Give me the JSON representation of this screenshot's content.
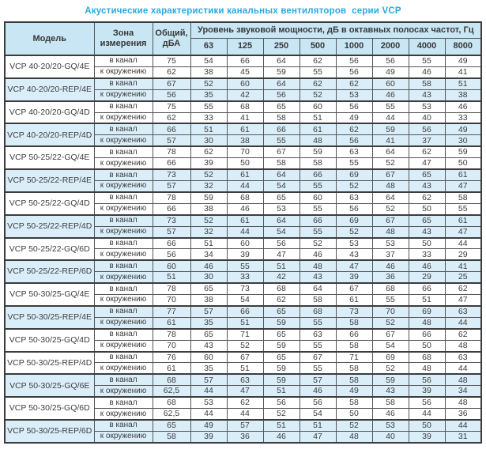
{
  "title": "Акустические характеристики канальных вентиляторов  серии VCP",
  "colors": {
    "title_text": "#29a9e1",
    "header_bg": "#c9e6f4",
    "shaded_row_bg": "#daeef9",
    "border": "#3c3c3c"
  },
  "table": {
    "header": {
      "model": "Модель",
      "zone": "Зона измерения",
      "total": "Общий, дБА",
      "spl": "Уровень звуковой мощности, дБ в октавных полосах частот, Гц",
      "freqs": [
        "63",
        "125",
        "250",
        "500",
        "1000",
        "2000",
        "4000",
        "8000"
      ]
    },
    "zone_labels": [
      "в канал",
      "к окружению"
    ],
    "models": [
      {
        "name": "VCP 40-20/20-GQ/4E",
        "shaded": false,
        "rows": [
          {
            "zone": "в канал",
            "total": "75",
            "values": [
              54,
              66,
              64,
              62,
              56,
              56,
              55,
              49
            ]
          },
          {
            "zone": "к окружению",
            "total": "62",
            "values": [
              38,
              45,
              59,
              55,
              56,
              49,
              46,
              41
            ]
          }
        ]
      },
      {
        "name": "VCP 40-20/20-REP/4E",
        "shaded": true,
        "rows": [
          {
            "zone": "в канал",
            "total": "67",
            "values": [
              52,
              60,
              64,
              62,
              62,
              60,
              58,
              51
            ]
          },
          {
            "zone": "к окружению",
            "total": "56",
            "values": [
              35,
              42,
              56,
              52,
              53,
              46,
              43,
              38
            ]
          }
        ]
      },
      {
        "name": "VCP 40-20/20-GQ/4D",
        "shaded": false,
        "rows": [
          {
            "zone": "в канал",
            "total": "75",
            "values": [
              55,
              68,
              65,
              60,
              56,
              55,
              53,
              46
            ]
          },
          {
            "zone": "к окружению",
            "total": "62",
            "values": [
              33,
              41,
              58,
              51,
              49,
              44,
              40,
              33
            ]
          }
        ]
      },
      {
        "name": "VCP 40-20/20-REP/4D",
        "shaded": true,
        "rows": [
          {
            "zone": "в канал",
            "total": "66",
            "values": [
              51,
              61,
              66,
              61,
              62,
              59,
              56,
              49
            ]
          },
          {
            "zone": "к окружению",
            "total": "57",
            "values": [
              30,
              38,
              55,
              48,
              56,
              41,
              37,
              30
            ]
          }
        ]
      },
      {
        "name": "VCP 50-25/22-GQ/4E",
        "shaded": false,
        "rows": [
          {
            "zone": "в канал",
            "total": "78",
            "values": [
              62,
              70,
              67,
              59,
              63,
              64,
              62,
              59
            ]
          },
          {
            "zone": "к окружению",
            "total": "66",
            "values": [
              39,
              50,
              58,
              58,
              55,
              52,
              47,
              50
            ]
          }
        ]
      },
      {
        "name": "VCP 50-25/22-REP/4E",
        "shaded": true,
        "rows": [
          {
            "zone": "в канал",
            "total": "73",
            "values": [
              52,
              61,
              64,
              66,
              69,
              67,
              65,
              61
            ]
          },
          {
            "zone": "к окружению",
            "total": "57",
            "values": [
              32,
              44,
              54,
              55,
              52,
              48,
              43,
              47
            ]
          }
        ]
      },
      {
        "name": "VCP 50-25/22-GQ/4D",
        "shaded": false,
        "rows": [
          {
            "zone": "в канал",
            "total": "78",
            "values": [
              59,
              68,
              65,
              60,
              63,
              64,
              62,
              58
            ]
          },
          {
            "zone": "к окружению",
            "total": "66",
            "values": [
              38,
              46,
              53,
              55,
              56,
              52,
              50,
              55
            ]
          }
        ]
      },
      {
        "name": "VCP 50-25/22-REP/4D",
        "shaded": true,
        "rows": [
          {
            "zone": "в канал",
            "total": "73",
            "values": [
              52,
              61,
              64,
              66,
              69,
              67,
              65,
              61
            ]
          },
          {
            "zone": "к окружению",
            "total": "57",
            "values": [
              32,
              44,
              54,
              55,
              52,
              48,
              43,
              47
            ]
          }
        ]
      },
      {
        "name": "VCP 50-25/22-GQ/6D",
        "shaded": false,
        "rows": [
          {
            "zone": "в канал",
            "total": "66",
            "values": [
              51,
              60,
              56,
              52,
              53,
              53,
              50,
              44
            ]
          },
          {
            "zone": "к окружению",
            "total": "56",
            "values": [
              34,
              39,
              47,
              46,
              43,
              37,
              33,
              29
            ]
          }
        ]
      },
      {
        "name": "VCP 50-25/22-REP/6D",
        "shaded": true,
        "rows": [
          {
            "zone": "в канал",
            "total": "60",
            "values": [
              46,
              55,
              51,
              48,
              47,
              46,
              46,
              41
            ]
          },
          {
            "zone": "к окружению",
            "total": "51",
            "values": [
              30,
              33,
              42,
              43,
              39,
              36,
              29,
              25
            ]
          }
        ]
      },
      {
        "name": "VCP 50-30/25-GQ/4E",
        "shaded": false,
        "rows": [
          {
            "zone": "в канал",
            "total": "78",
            "values": [
              65,
              73,
              68,
              64,
              67,
              68,
              66,
              62
            ]
          },
          {
            "zone": "к окружению",
            "total": "70",
            "values": [
              38,
              54,
              62,
              58,
              61,
              55,
              51,
              47
            ]
          }
        ]
      },
      {
        "name": "VCP 50-30/25-REP/4E",
        "shaded": true,
        "rows": [
          {
            "zone": "в канал",
            "total": "77",
            "values": [
              57,
              66,
              65,
              68,
              73,
              70,
              69,
              63
            ]
          },
          {
            "zone": "к окружению",
            "total": "61",
            "values": [
              35,
              51,
              59,
              55,
              58,
              52,
              48,
              44
            ]
          }
        ]
      },
      {
        "name": "VCP 50-30/25-GQ/4D",
        "shaded": false,
        "rows": [
          {
            "zone": "в канал",
            "total": "78",
            "values": [
              65,
              71,
              65,
              63,
              66,
              67,
              66,
              62
            ]
          },
          {
            "zone": "к окружению",
            "total": "70",
            "values": [
              43,
              52,
              59,
              55,
              58,
              54,
              50,
              48
            ]
          }
        ]
      },
      {
        "name": "VCP 50-30/25-REP/4D",
        "shaded": false,
        "rows": [
          {
            "zone": "в канал",
            "total": "76",
            "values": [
              60,
              67,
              65,
              67,
              71,
              69,
              68,
              63
            ]
          },
          {
            "zone": "к окружению",
            "total": "61",
            "values": [
              35,
              51,
              59,
              55,
              58,
              52,
              48,
              44
            ]
          }
        ]
      },
      {
        "name": "VCP 50-30/25-GQ/6E",
        "shaded": true,
        "rows": [
          {
            "zone": "в канал",
            "total": "68",
            "values": [
              57,
              63,
              59,
              57,
              58,
              59,
              56,
              48
            ]
          },
          {
            "zone": "к окружению",
            "total": "62,5",
            "values": [
              44,
              47,
              51,
              46,
              49,
              43,
              39,
              34
            ]
          }
        ]
      },
      {
        "name": "VCP 50-30/25-GQ/6D",
        "shaded": false,
        "rows": [
          {
            "zone": "в канал",
            "total": "68",
            "values": [
              53,
              62,
              56,
              56,
              58,
              58,
              56,
              48
            ]
          },
          {
            "zone": "к окружению",
            "total": "62,5",
            "values": [
              44,
              44,
              52,
              54,
              50,
              46,
              44,
              36
            ]
          }
        ]
      },
      {
        "name": "VCP 50-30/25-REP/6D",
        "shaded": true,
        "rows": [
          {
            "zone": "в канал",
            "total": "65",
            "values": [
              49,
              57,
              51,
              51,
              52,
              53,
              50,
              44
            ]
          },
          {
            "zone": "к окружению",
            "total": "58",
            "values": [
              39,
              36,
              46,
              47,
              48,
              40,
              39,
              31
            ]
          }
        ]
      }
    ]
  }
}
